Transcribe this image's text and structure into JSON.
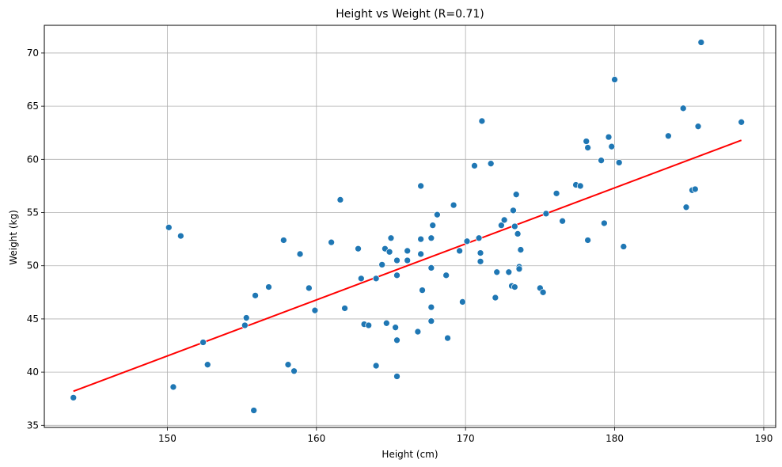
{
  "chart_data": {
    "type": "scatter",
    "title": "Height vs Weight (R=0.71)",
    "xlabel": "Height (cm)",
    "ylabel": "Weight (kg)",
    "xlim": [
      141.75,
      190.8
    ],
    "ylim": [
      34.8,
      72.6
    ],
    "xticks": [
      150,
      160,
      170,
      180,
      190
    ],
    "yticks": [
      35,
      40,
      45,
      50,
      55,
      60,
      65,
      70
    ],
    "grid": true,
    "colors": {
      "points": "#1f77b4",
      "fit_line": "#ff0000",
      "grid": "#b0b0b0"
    },
    "fit_line": {
      "x": [
        143.7,
        188.5
      ],
      "y": [
        38.2,
        61.8
      ]
    },
    "points": [
      [
        143.7,
        37.6
      ],
      [
        150.1,
        53.6
      ],
      [
        150.4,
        38.6
      ],
      [
        150.9,
        52.8
      ],
      [
        152.4,
        42.8
      ],
      [
        152.7,
        40.7
      ],
      [
        155.2,
        44.4
      ],
      [
        155.3,
        45.1
      ],
      [
        155.8,
        36.4
      ],
      [
        155.9,
        47.2
      ],
      [
        156.8,
        48.0
      ],
      [
        157.8,
        52.4
      ],
      [
        158.1,
        40.7
      ],
      [
        158.5,
        40.1
      ],
      [
        158.9,
        51.1
      ],
      [
        159.5,
        47.9
      ],
      [
        159.9,
        45.8
      ],
      [
        161.0,
        52.2
      ],
      [
        161.6,
        56.2
      ],
      [
        161.9,
        46.0
      ],
      [
        162.8,
        51.6
      ],
      [
        163.0,
        48.8
      ],
      [
        163.2,
        44.5
      ],
      [
        163.5,
        44.4
      ],
      [
        164.0,
        48.8
      ],
      [
        164.0,
        40.6
      ],
      [
        164.4,
        50.1
      ],
      [
        164.6,
        51.6
      ],
      [
        164.7,
        44.6
      ],
      [
        164.9,
        51.3
      ],
      [
        165.0,
        52.6
      ],
      [
        165.3,
        44.2
      ],
      [
        165.4,
        50.5
      ],
      [
        165.4,
        49.1
      ],
      [
        165.4,
        43.0
      ],
      [
        165.4,
        39.6
      ],
      [
        166.1,
        51.4
      ],
      [
        166.1,
        50.5
      ],
      [
        166.8,
        43.8
      ],
      [
        167.0,
        57.5
      ],
      [
        167.0,
        52.5
      ],
      [
        167.0,
        51.1
      ],
      [
        167.1,
        47.7
      ],
      [
        167.7,
        52.6
      ],
      [
        167.7,
        49.8
      ],
      [
        167.7,
        46.1
      ],
      [
        167.7,
        44.8
      ],
      [
        167.8,
        53.8
      ],
      [
        168.1,
        54.8
      ],
      [
        168.7,
        49.1
      ],
      [
        168.8,
        43.2
      ],
      [
        169.2,
        55.7
      ],
      [
        169.6,
        51.4
      ],
      [
        169.8,
        46.6
      ],
      [
        170.1,
        52.3
      ],
      [
        170.6,
        59.4
      ],
      [
        170.9,
        52.6
      ],
      [
        171.0,
        51.2
      ],
      [
        171.0,
        50.4
      ],
      [
        171.1,
        63.6
      ],
      [
        171.7,
        59.6
      ],
      [
        172.0,
        47.0
      ],
      [
        172.1,
        49.4
      ],
      [
        172.4,
        53.8
      ],
      [
        172.6,
        54.3
      ],
      [
        172.9,
        49.4
      ],
      [
        173.1,
        48.1
      ],
      [
        173.2,
        55.2
      ],
      [
        173.3,
        53.7
      ],
      [
        173.3,
        48.0
      ],
      [
        173.4,
        56.7
      ],
      [
        173.5,
        53.0
      ],
      [
        173.6,
        49.9
      ],
      [
        173.6,
        49.7
      ],
      [
        173.7,
        51.5
      ],
      [
        175.0,
        47.9
      ],
      [
        175.2,
        47.5
      ],
      [
        175.4,
        54.9
      ],
      [
        176.1,
        56.8
      ],
      [
        176.5,
        54.2
      ],
      [
        177.4,
        57.6
      ],
      [
        177.7,
        57.5
      ],
      [
        178.1,
        61.7
      ],
      [
        178.2,
        61.1
      ],
      [
        178.2,
        52.4
      ],
      [
        179.1,
        59.9
      ],
      [
        179.3,
        54.0
      ],
      [
        179.6,
        62.1
      ],
      [
        179.8,
        61.2
      ],
      [
        180.0,
        67.5
      ],
      [
        180.3,
        59.7
      ],
      [
        180.6,
        51.8
      ],
      [
        183.6,
        62.2
      ],
      [
        184.6,
        64.8
      ],
      [
        184.8,
        55.5
      ],
      [
        185.2,
        57.1
      ],
      [
        185.4,
        57.2
      ],
      [
        185.6,
        63.1
      ],
      [
        185.8,
        71.0
      ],
      [
        188.5,
        63.5
      ]
    ]
  }
}
